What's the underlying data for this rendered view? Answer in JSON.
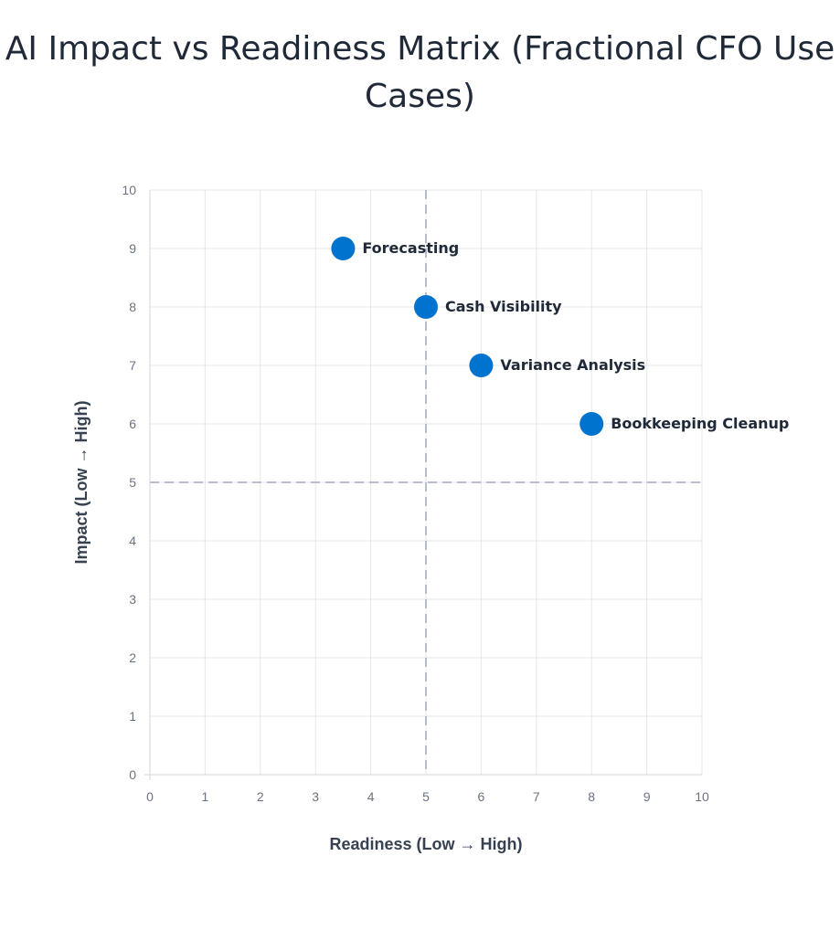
{
  "chart_data": {
    "type": "scatter",
    "title": "AI Impact vs Readiness Matrix (Fractional CFO Use Cases)",
    "xlabel": "Readiness (Low → High)",
    "ylabel": "Impact (Low → High)",
    "xlim": [
      0,
      10
    ],
    "ylim": [
      0,
      10
    ],
    "xticks": [
      0,
      1,
      2,
      3,
      4,
      5,
      6,
      7,
      8,
      9,
      10
    ],
    "yticks": [
      0,
      1,
      2,
      3,
      4,
      5,
      6,
      7,
      8,
      9,
      10
    ],
    "grid": true,
    "quadrant_dividers": {
      "x": 5,
      "y": 5
    },
    "points": [
      {
        "label": "Forecasting",
        "x": 3.5,
        "y": 9
      },
      {
        "label": "Cash Visibility",
        "x": 5,
        "y": 8
      },
      {
        "label": "Variance Analysis",
        "x": 6,
        "y": 7
      },
      {
        "label": "Bookkeeping Cleanup",
        "x": 8,
        "y": 6
      }
    ],
    "colors": {
      "point": "#0073cf",
      "grid": "#e5e7eb",
      "divider": "#b8bccb",
      "axis": "#d1d5db"
    }
  }
}
